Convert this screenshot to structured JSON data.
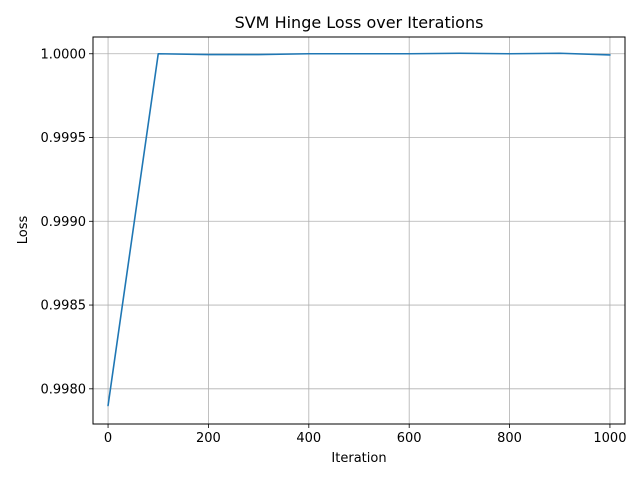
{
  "chart_data": {
    "type": "line",
    "title": "SVM Hinge Loss over Iterations",
    "xlabel": "Iteration",
    "ylabel": "Loss",
    "xlim": [
      -30,
      1030
    ],
    "ylim": [
      0.99779,
      1.0001
    ],
    "xticks": [
      0,
      200,
      400,
      600,
      800,
      1000
    ],
    "yticks": [
      0.998,
      0.9985,
      0.999,
      0.9995,
      1.0
    ],
    "ytick_labels": [
      "0.9980",
      "0.9985",
      "0.9990",
      "0.9995",
      "1.0000"
    ],
    "grid": true,
    "series": [
      {
        "x": [
          0,
          100,
          200,
          300,
          400,
          500,
          600,
          700,
          800,
          900,
          1000
        ],
        "values": [
          0.9979,
          1.0,
          0.999995,
          0.999995,
          1.0,
          1.0,
          1.0,
          1.000003,
          1.0,
          1.000003,
          0.999993
        ],
        "color": "#1f77b4"
      }
    ]
  }
}
